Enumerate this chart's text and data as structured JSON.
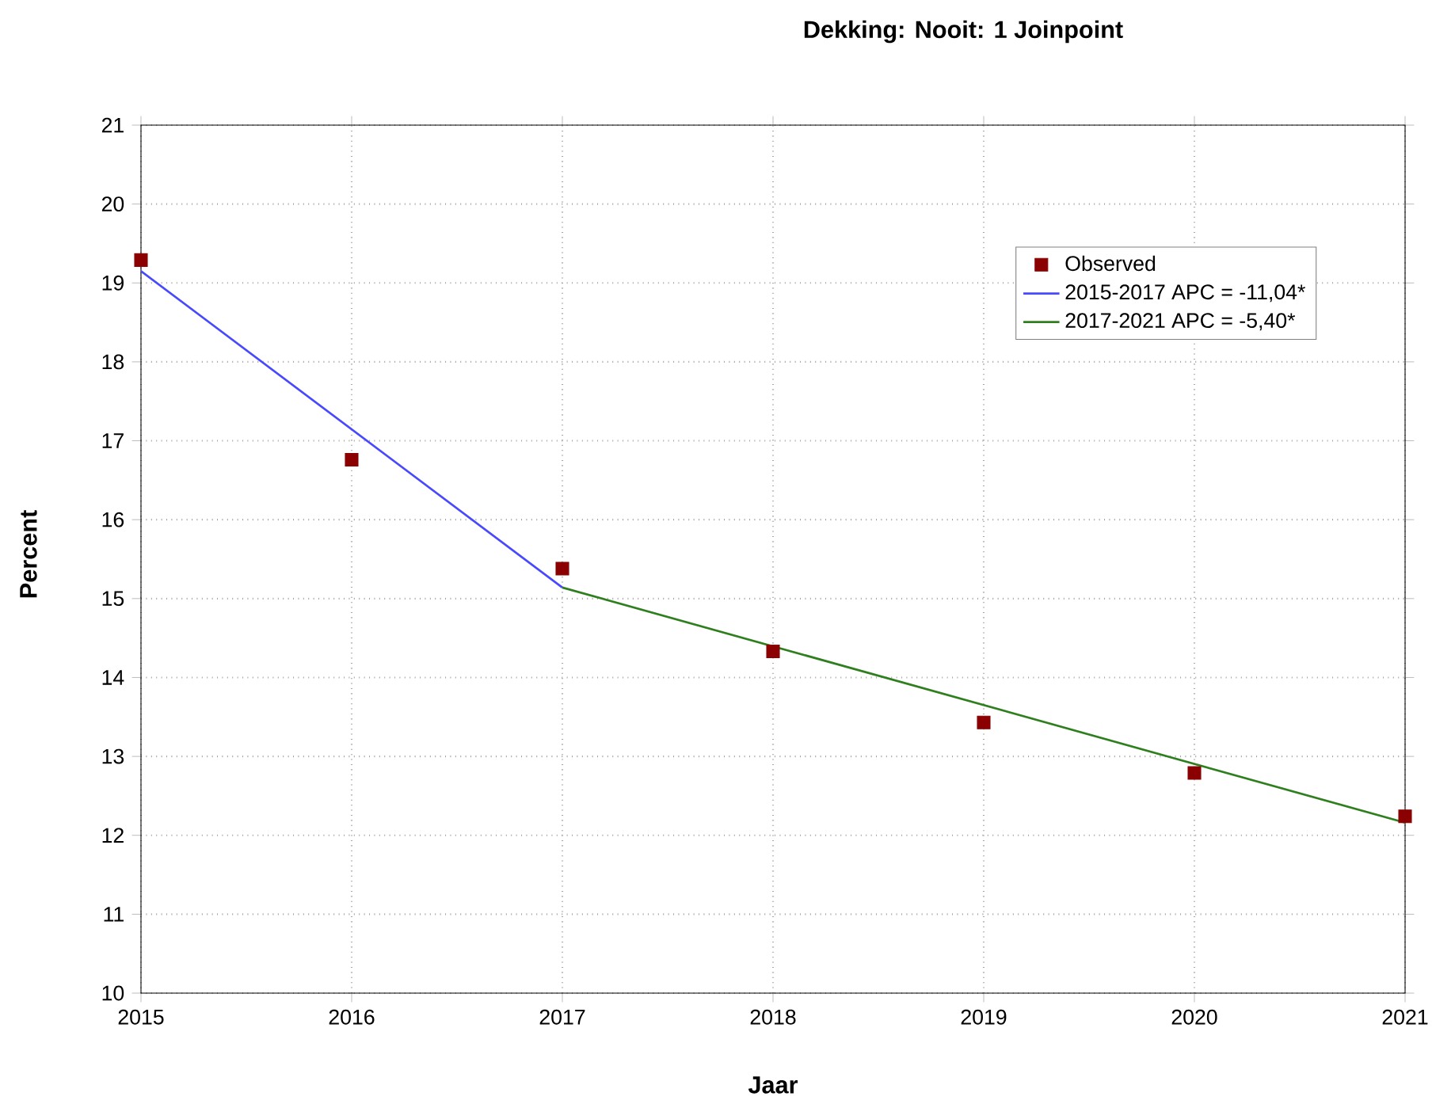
{
  "chart_data": {
    "type": "line",
    "title": "Dekking: Nooit: 1 Joinpoint",
    "xlabel": "Jaar",
    "ylabel": "Percent",
    "x": [
      2015,
      2016,
      2017,
      2018,
      2019,
      2020,
      2021
    ],
    "series": [
      {
        "name": "Observed",
        "type": "scatter",
        "color": "#8b0000",
        "marker": "square",
        "values": [
          19.29,
          16.76,
          15.38,
          14.33,
          13.43,
          12.79,
          12.24
        ]
      },
      {
        "name": "2015-2017 APC  =  -11,04*",
        "color": "#4848ff",
        "x": [
          2015,
          2017
        ],
        "values": [
          19.15,
          15.14
        ]
      },
      {
        "name": "2017-2021 APC  =  -5,40*",
        "color": "#2f7f1f",
        "x": [
          2017,
          2021
        ],
        "values": [
          15.14,
          12.16
        ]
      }
    ],
    "xlim": [
      2015,
      2021
    ],
    "ylim": [
      10,
      21
    ],
    "xticks": [
      2015,
      2016,
      2017,
      2018,
      2019,
      2020,
      2021
    ],
    "yticks": [
      10,
      11,
      12,
      13,
      14,
      15,
      16,
      17,
      18,
      19,
      20,
      21
    ],
    "grid": true,
    "legend": "top right"
  }
}
